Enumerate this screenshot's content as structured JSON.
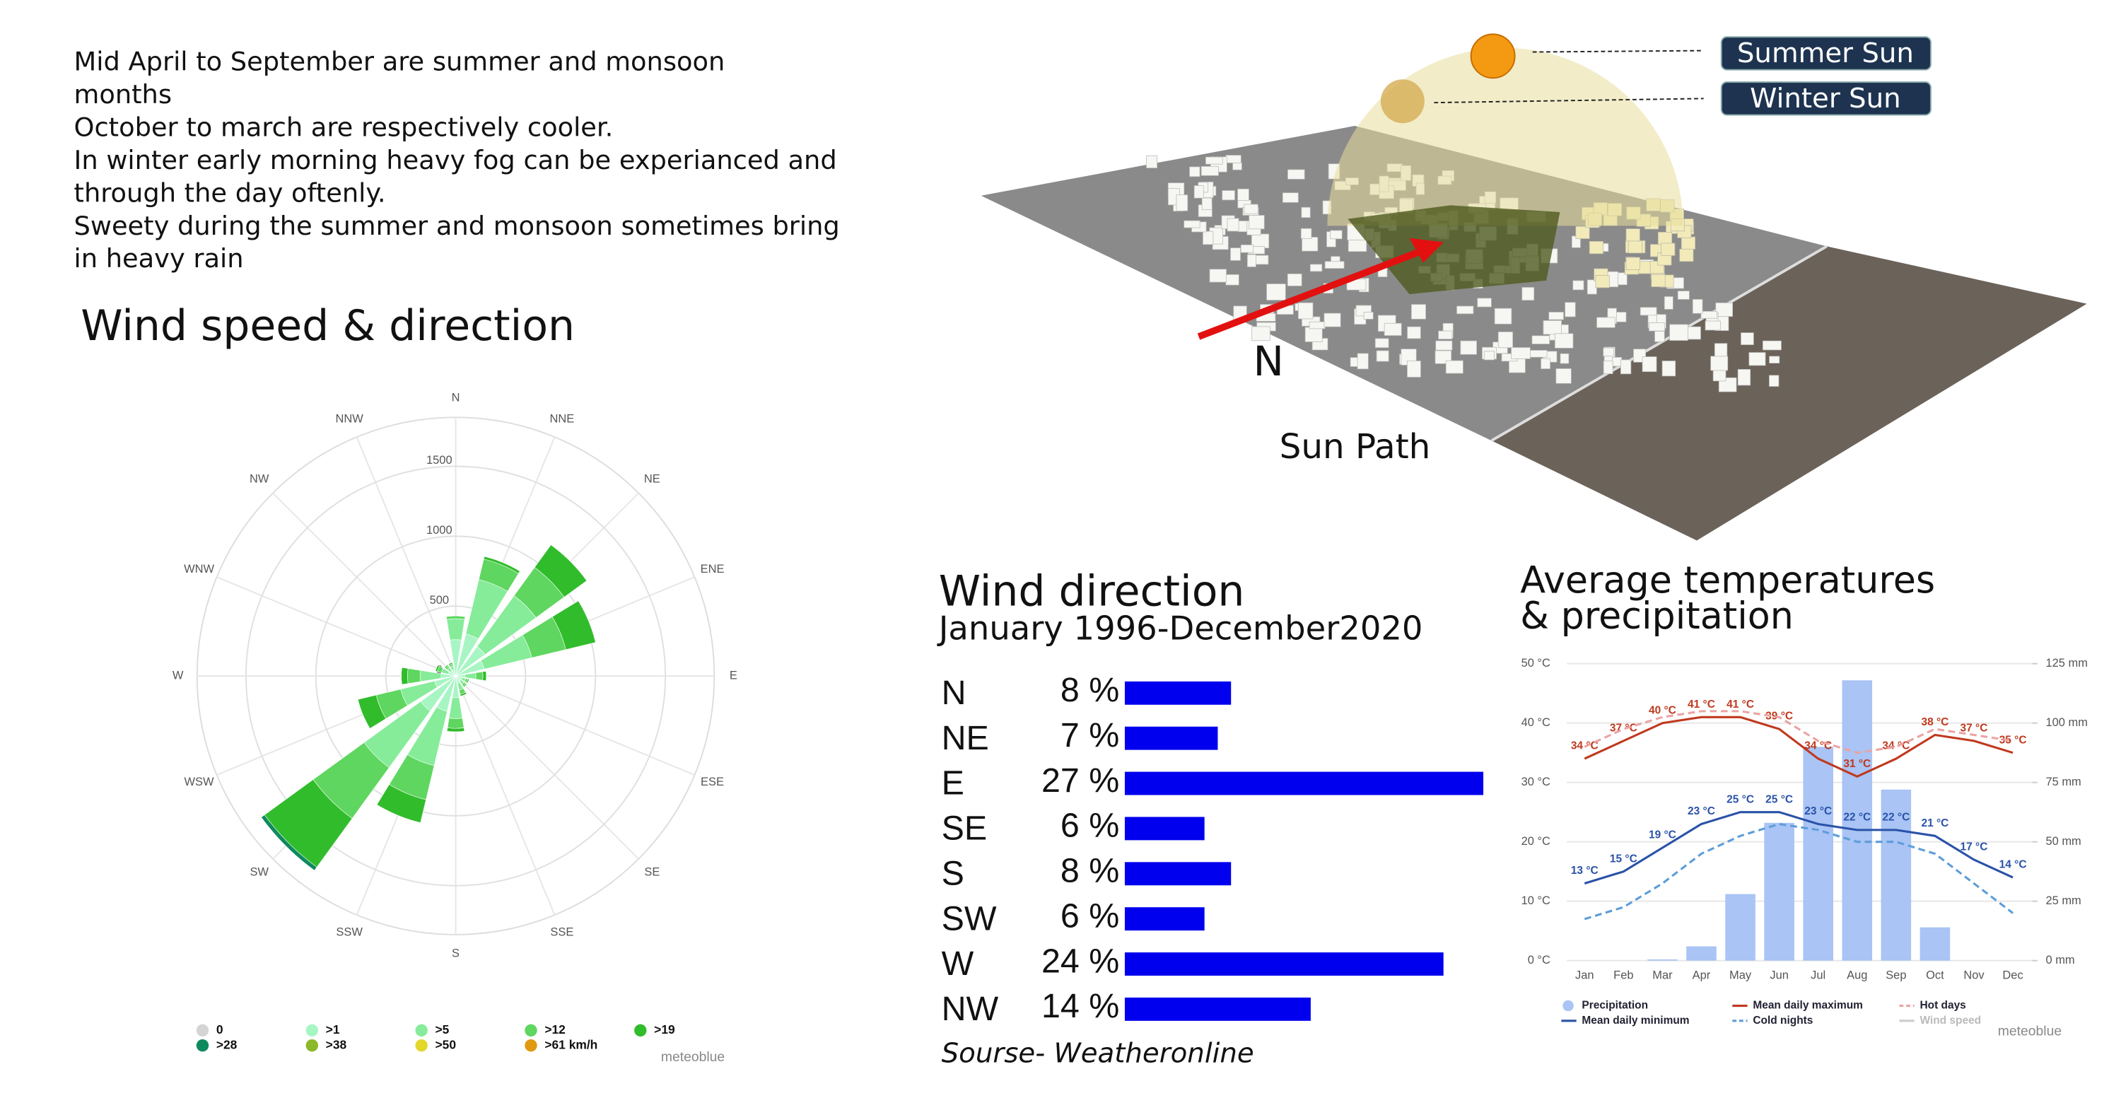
{
  "notes": [
    "Mid April to September are summer and monsoon",
    "months",
    "October to march are respectively cooler.",
    "In winter early morning heavy fog can be experianced and",
    "through the day oftenly.",
    "Sweety during the summer and monsoon sometimes bring",
    "in heavy rain"
  ],
  "sun_path": {
    "caption": "Sun Path",
    "north": "N",
    "summer": "Summer Sun",
    "winter": "Winter Sun"
  },
  "chart_data": [
    {
      "type": "windrose",
      "title": "Wind speed & direction",
      "source": "meteoblue",
      "categories": [
        "N",
        "NNE",
        "NE",
        "ENE",
        "E",
        "ESE",
        "SE",
        "SSE",
        "S",
        "SSW",
        "SW",
        "WSW",
        "W",
        "WNW",
        "NW",
        "NNW"
      ],
      "rlim": [
        0,
        1850
      ],
      "rticks": [
        0,
        500,
        1000,
        1500
      ],
      "grid": true,
      "series": [
        {
          "name": "0",
          "color": "#d4d4d4",
          "values": [
            10,
            10,
            10,
            10,
            5,
            5,
            5,
            5,
            5,
            10,
            10,
            5,
            5,
            5,
            5,
            5
          ]
        },
        {
          "name": ">1",
          "color": "#a8f5c4",
          "values": [
            250,
            300,
            250,
            200,
            60,
            40,
            40,
            50,
            150,
            250,
            300,
            150,
            100,
            50,
            40,
            40
          ]
        },
        {
          "name": ">5",
          "color": "#86ec9a",
          "values": [
            150,
            400,
            450,
            350,
            80,
            30,
            30,
            50,
            150,
            400,
            500,
            250,
            150,
            50,
            30,
            30
          ]
        },
        {
          "name": ">12",
          "color": "#5fd65f",
          "values": [
            20,
            150,
            250,
            250,
            50,
            15,
            15,
            30,
            70,
            250,
            450,
            180,
            90,
            30,
            15,
            15
          ]
        },
        {
          "name": ">19",
          "color": "#31bc2c",
          "values": [
            0,
            20,
            200,
            220,
            25,
            10,
            10,
            15,
            25,
            170,
            430,
            135,
            45,
            15,
            10,
            10
          ]
        },
        {
          "name": ">28",
          "color": "#0f8a5f",
          "values": [
            0,
            0,
            0,
            0,
            0,
            0,
            0,
            0,
            0,
            0,
            30,
            0,
            0,
            0,
            0,
            0
          ]
        },
        {
          "name": ">38",
          "color": "#8cb82a",
          "values": [
            0,
            0,
            0,
            0,
            0,
            0,
            0,
            0,
            0,
            0,
            0,
            0,
            0,
            0,
            0,
            0
          ]
        },
        {
          "name": ">50",
          "color": "#e3d72c",
          "values": [
            0,
            0,
            0,
            0,
            0,
            0,
            0,
            0,
            0,
            0,
            0,
            0,
            0,
            0,
            0,
            0
          ]
        },
        {
          "name": ">61 km/h",
          "color": "#e09a12",
          "values": [
            0,
            0,
            0,
            0,
            0,
            0,
            0,
            0,
            0,
            0,
            0,
            0,
            0,
            0,
            0,
            0
          ]
        }
      ]
    },
    {
      "type": "bar",
      "orientation": "horizontal",
      "title": "Wind direction",
      "subtitle": "January 1996-December2020",
      "source": "Sourse- Weatheronline",
      "categories": [
        "N",
        "NE",
        "E",
        "SE",
        "S",
        "SW",
        "W",
        "NW"
      ],
      "values": [
        8,
        7,
        27,
        6,
        8,
        6,
        24,
        14
      ],
      "value_labels": [
        "8 %",
        "7 %",
        "27 %",
        "6 %",
        "8 %",
        "6 %",
        "24 %",
        "14 %"
      ],
      "color": "#0000ee",
      "xlim": [
        0,
        27
      ]
    },
    {
      "type": "combo",
      "title": [
        "Average temperatures",
        "& precipitation"
      ],
      "source": "meteoblue",
      "categories": [
        "Jan",
        "Feb",
        "Mar",
        "Apr",
        "May",
        "Jun",
        "Jul",
        "Aug",
        "Sep",
        "Oct",
        "Nov",
        "Dec"
      ],
      "ylim": [
        0,
        50
      ],
      "yticks": [
        {
          "value": 0,
          "label": "0 °C"
        },
        {
          "value": 10,
          "label": "10 °C"
        },
        {
          "value": 20,
          "label": "20 °C"
        },
        {
          "value": 30,
          "label": "30 °C"
        },
        {
          "value": 40,
          "label": "40 °C"
        },
        {
          "value": 50,
          "label": "50 °C"
        }
      ],
      "y2lim": [
        0,
        125
      ],
      "y2ticks": [
        {
          "value": 0,
          "label": "0 mm"
        },
        {
          "value": 25,
          "label": "25 mm"
        },
        {
          "value": 50,
          "label": "50 mm"
        },
        {
          "value": 75,
          "label": "75 mm"
        },
        {
          "value": 100,
          "label": "100 mm"
        },
        {
          "value": 125,
          "label": "125 mm"
        }
      ],
      "grid": true,
      "series": [
        {
          "name": "Precipitation",
          "style": "bar",
          "axis": "y2",
          "color": "#a9c4f5",
          "values": [
            0,
            0,
            0.5,
            6,
            28,
            58,
            90,
            118,
            72,
            14,
            0,
            0
          ]
        },
        {
          "name": "Mean daily maximum",
          "style": "line",
          "color": "#c0391e",
          "values": [
            34,
            37,
            40,
            41,
            41,
            39,
            34,
            31,
            34,
            38,
            37,
            35
          ],
          "value_labels": [
            "34 °C",
            "37 °C",
            "40 °C",
            "41 °C",
            "41 °C",
            "39 °C",
            "34 °C",
            "31 °C",
            "34 °C",
            "38 °C",
            "37 °C",
            "35 °C"
          ]
        },
        {
          "name": "Hot days",
          "style": "dashed",
          "color": "#eba3a3",
          "values": [
            36,
            39,
            41,
            42,
            42,
            41,
            37,
            35,
            36,
            39,
            38,
            37
          ]
        },
        {
          "name": "Mean daily minimum",
          "style": "line",
          "color": "#2a52a8",
          "values": [
            13,
            15,
            19,
            23,
            25,
            25,
            23,
            22,
            22,
            21,
            17,
            14
          ],
          "value_labels": [
            "13 °C",
            "15 °C",
            "19 °C",
            "23 °C",
            "25 °C",
            "25 °C",
            "23 °C",
            "22 °C",
            "22 °C",
            "21 °C",
            "17 °C",
            "14 °C"
          ]
        },
        {
          "name": "Cold nights",
          "style": "dashed",
          "color": "#5d9dd9",
          "values": [
            7,
            9,
            13,
            18,
            21,
            23,
            22,
            20,
            20,
            18,
            13,
            8
          ]
        },
        {
          "name": "Wind speed",
          "style": "line",
          "color": "#cccccc",
          "values": [
            null,
            null,
            null,
            null,
            null,
            null,
            null,
            null,
            null,
            null,
            null,
            null
          ]
        }
      ]
    }
  ]
}
